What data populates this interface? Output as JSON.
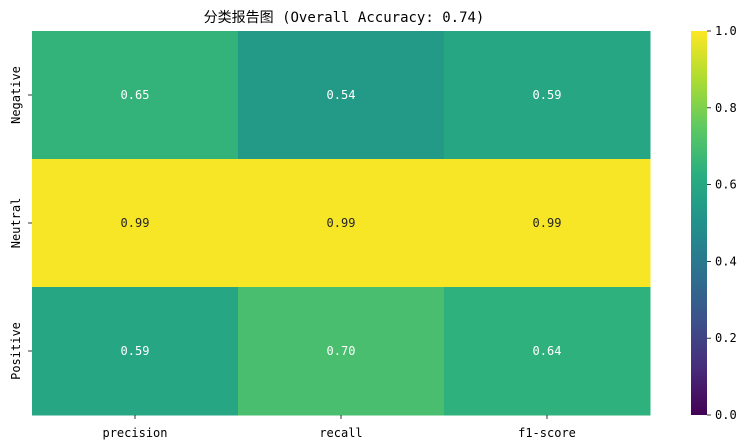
{
  "chart_data": {
    "type": "heatmap",
    "title": "分类报告图 (Overall Accuracy: 0.74)",
    "xlabel": "",
    "ylabel": "",
    "x_categories": [
      "precision",
      "recall",
      "f1-score"
    ],
    "y_categories": [
      "Negative",
      "Neutral",
      "Positive"
    ],
    "values": [
      [
        0.65,
        0.54,
        0.59
      ],
      [
        0.99,
        0.99,
        0.99
      ],
      [
        0.59,
        0.7,
        0.64
      ]
    ],
    "value_labels": [
      [
        "0.65",
        "0.54",
        "0.59"
      ],
      [
        "0.99",
        "0.99",
        "0.99"
      ],
      [
        "0.59",
        "0.70",
        "0.64"
      ]
    ],
    "colormap": "viridis",
    "vmin": 0.0,
    "vmax": 1.0,
    "colorbar_ticks": [
      "0.0",
      "0.2",
      "0.4",
      "0.6",
      "0.8",
      "1.0"
    ],
    "colorbar_tick_values": [
      0.0,
      0.2,
      0.4,
      0.6,
      0.8,
      1.0
    ],
    "grid": false,
    "legend": "colorbar-right"
  }
}
